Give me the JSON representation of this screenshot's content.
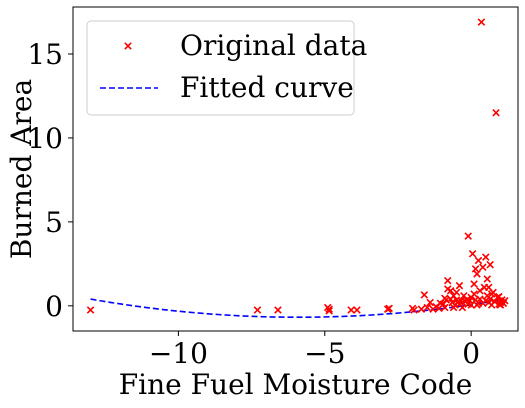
{
  "chart_data": {
    "type": "scatter",
    "title": "",
    "xlabel": "Fine Fuel Moisture Code",
    "ylabel": "Burned Area",
    "xlim": [
      -13.6,
      1.6
    ],
    "ylim": [
      -1.5,
      17.8
    ],
    "xticks": [
      -10,
      -5,
      0
    ],
    "yticks": [
      0,
      5,
      10,
      15
    ],
    "tick_labels_x": [
      "−10",
      "−5",
      "0"
    ],
    "tick_labels_y": [
      "0",
      "5",
      "10",
      "15"
    ],
    "grid": false,
    "legend_position": "top-left",
    "series": [
      {
        "name": "Original data",
        "kind": "scatter",
        "marker": "x",
        "color": "#ff0000",
        "points": [
          [
            -13.0,
            -0.25
          ],
          [
            -7.3,
            -0.25
          ],
          [
            -6.6,
            -0.25
          ],
          [
            -4.9,
            -0.1
          ],
          [
            -4.85,
            -0.2
          ],
          [
            -4.85,
            -0.3
          ],
          [
            -4.1,
            -0.25
          ],
          [
            -3.9,
            -0.25
          ],
          [
            -2.85,
            -0.2
          ],
          [
            -2.8,
            -0.15
          ],
          [
            -2.0,
            -0.15
          ],
          [
            -1.95,
            -0.25
          ],
          [
            -1.7,
            -0.2
          ],
          [
            -1.6,
            0.65
          ],
          [
            -1.5,
            -0.1
          ],
          [
            -1.3,
            -0.2
          ],
          [
            -1.2,
            -0.05
          ],
          [
            -1.1,
            -0.15
          ],
          [
            -1.05,
            0.15
          ],
          [
            -0.95,
            0.1
          ],
          [
            -0.9,
            -0.1
          ],
          [
            -0.85,
            0.35
          ],
          [
            -0.8,
            1.0
          ],
          [
            -0.8,
            1.5
          ],
          [
            -0.7,
            0.4
          ],
          [
            -0.65,
            0.2
          ],
          [
            -0.6,
            -0.1
          ],
          [
            -0.55,
            0.05
          ],
          [
            -0.5,
            0.8
          ],
          [
            -0.45,
            0.25
          ],
          [
            -0.4,
            0.1
          ],
          [
            -0.35,
            0.3
          ],
          [
            -0.3,
            -0.1
          ],
          [
            -0.25,
            0.6
          ],
          [
            -0.2,
            0.25
          ],
          [
            -0.15,
            0.35
          ],
          [
            -0.1,
            0.1
          ],
          [
            -0.05,
            0.3
          ],
          [
            -0.3,
            0.2
          ],
          [
            0.0,
            0.5
          ],
          [
            0.0,
            0.05
          ],
          [
            0.05,
            3.1
          ],
          [
            0.1,
            1.3
          ],
          [
            0.15,
            2.2
          ],
          [
            0.15,
            0.35
          ],
          [
            0.2,
            0.05
          ],
          [
            0.2,
            1.9
          ],
          [
            0.25,
            2.7
          ],
          [
            0.3,
            0.4
          ],
          [
            0.3,
            0.9
          ],
          [
            0.35,
            16.9
          ],
          [
            0.4,
            2.3
          ],
          [
            0.4,
            0.15
          ],
          [
            0.45,
            1.1
          ],
          [
            0.5,
            0.3
          ],
          [
            0.5,
            2.9
          ],
          [
            0.55,
            1.6
          ],
          [
            0.55,
            0.6
          ],
          [
            0.6,
            0.2
          ],
          [
            0.65,
            0.4
          ],
          [
            0.65,
            2.45
          ],
          [
            0.7,
            0.05
          ],
          [
            0.75,
            0.8
          ],
          [
            0.8,
            0.25
          ],
          [
            0.85,
            11.5
          ],
          [
            0.9,
            0.5
          ],
          [
            0.95,
            0.1
          ],
          [
            1.0,
            0.2
          ],
          [
            1.05,
            0.35
          ],
          [
            1.1,
            0.15
          ],
          [
            1.15,
            0.3
          ],
          [
            -0.1,
            4.15
          ],
          [
            -0.6,
            0.6
          ],
          [
            -0.7,
            0.9
          ],
          [
            -0.4,
            1.2
          ],
          [
            0.25,
            0.15
          ],
          [
            0.6,
            1.1
          ],
          [
            0.95,
            0.55
          ],
          [
            1.0,
            0.05
          ],
          [
            -1.4,
            0.2
          ],
          [
            -0.9,
            0.45
          ],
          [
            -0.5,
            0.35
          ],
          [
            0.1,
            0.7
          ],
          [
            0.7,
            0.7
          ]
        ]
      },
      {
        "name": "Fitted curve",
        "kind": "line",
        "style": "dashed",
        "color": "#0000ff",
        "x_range": [
          -13.0,
          1.1
        ],
        "quadratic_vertex": [
          -5.9,
          -0.68
        ],
        "quadratic_endpoint_at_min_x": 0.4
      }
    ]
  }
}
